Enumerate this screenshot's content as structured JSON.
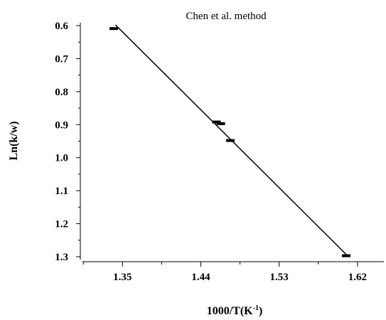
{
  "chart_data": {
    "type": "scatter",
    "title": "Chen et al. method",
    "xlabel_base": "1000/T(K",
    "xlabel_sup": "-1",
    "xlabel_close": ")",
    "ylabel": "Ln(k/w)",
    "x_ticks": [
      "1.35",
      "1.44",
      "1.53",
      "1.62"
    ],
    "y_ticks": [
      "0.6",
      "0.7",
      "0.8",
      "0.9",
      "1.0",
      "1.1",
      "1.2",
      "1.3"
    ],
    "xlim": [
      1.3016,
      1.6503
    ],
    "ylim": [
      0.6,
      1.3
    ],
    "y_inverted": true,
    "points": [
      {
        "x": 1.34,
        "y": 0.609
      },
      {
        "x": 1.458,
        "y": 0.892
      },
      {
        "x": 1.463,
        "y": 0.897
      },
      {
        "x": 1.474,
        "y": 0.948
      },
      {
        "x": 1.607,
        "y": 1.297
      }
    ],
    "fit_line": {
      "x": [
        1.342,
        1.607
      ],
      "y": [
        0.598,
        1.293
      ]
    },
    "grid": false
  }
}
